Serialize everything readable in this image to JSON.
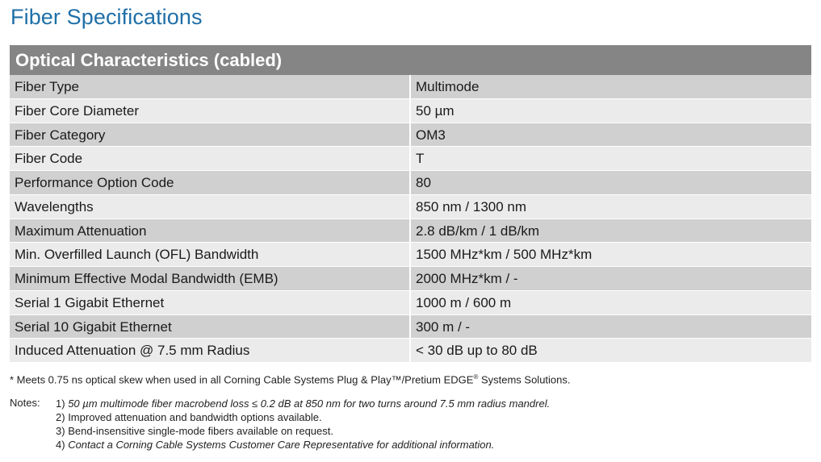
{
  "page_title": "Fiber Specifications",
  "table": {
    "header": "Optical Characteristics (cabled)",
    "rows": [
      {
        "label": "Fiber Type",
        "value": "Multimode"
      },
      {
        "label": "Fiber Core Diameter",
        "value": "50 µm"
      },
      {
        "label": "Fiber Category",
        "value": "OM3"
      },
      {
        "label": "Fiber Code",
        "value": "T"
      },
      {
        "label": "Performance Option Code",
        "value": "80"
      },
      {
        "label": "Wavelengths",
        "value": "850 nm / 1300 nm"
      },
      {
        "label": "Maximum Attenuation",
        "value": "2.8 dB/km / 1 dB/km"
      },
      {
        "label": "Min. Overfilled Launch (OFL) Bandwidth",
        "value": "1500 MHz*km / 500 MHz*km"
      },
      {
        "label": "Minimum Effective Modal Bandwidth (EMB)",
        "value": "2000 MHz*km / -"
      },
      {
        "label": "Serial 1 Gigabit Ethernet",
        "value": "1000 m / 600 m"
      },
      {
        "label": "Serial 10 Gigabit Ethernet",
        "value": "300 m / -"
      },
      {
        "label": "Induced Attenuation @ 7.5 mm Radius",
        "value": "< 30 dB up to 80 dB"
      }
    ]
  },
  "footnote": {
    "text_before": "* Meets 0.75 ns optical skew when used in all Corning Cable Systems Plug & Play™/Pretium EDGE",
    "reg_mark": "®",
    "text_after": " Systems Solutions."
  },
  "notes": {
    "label": "Notes:",
    "items": [
      {
        "num": "1)",
        "text": "50 µm multimode fiber macrobend loss ≤ 0.2 dB at 850 nm for two turns around 7.5 mm radius mandrel."
      },
      {
        "num": "2)",
        "text": "Improved attenuation and bandwidth options available."
      },
      {
        "num": "3)",
        "text": "Bend-insensitive single-mode fibers available on request."
      },
      {
        "num": "4)",
        "text": "Contact a Corning Cable Systems Customer Care Representative for additional information."
      }
    ]
  },
  "colors": {
    "title": "#1f6fa8",
    "header_bg": "#858585",
    "row_dark": "#d0d0d0",
    "row_light": "#ebebeb"
  }
}
